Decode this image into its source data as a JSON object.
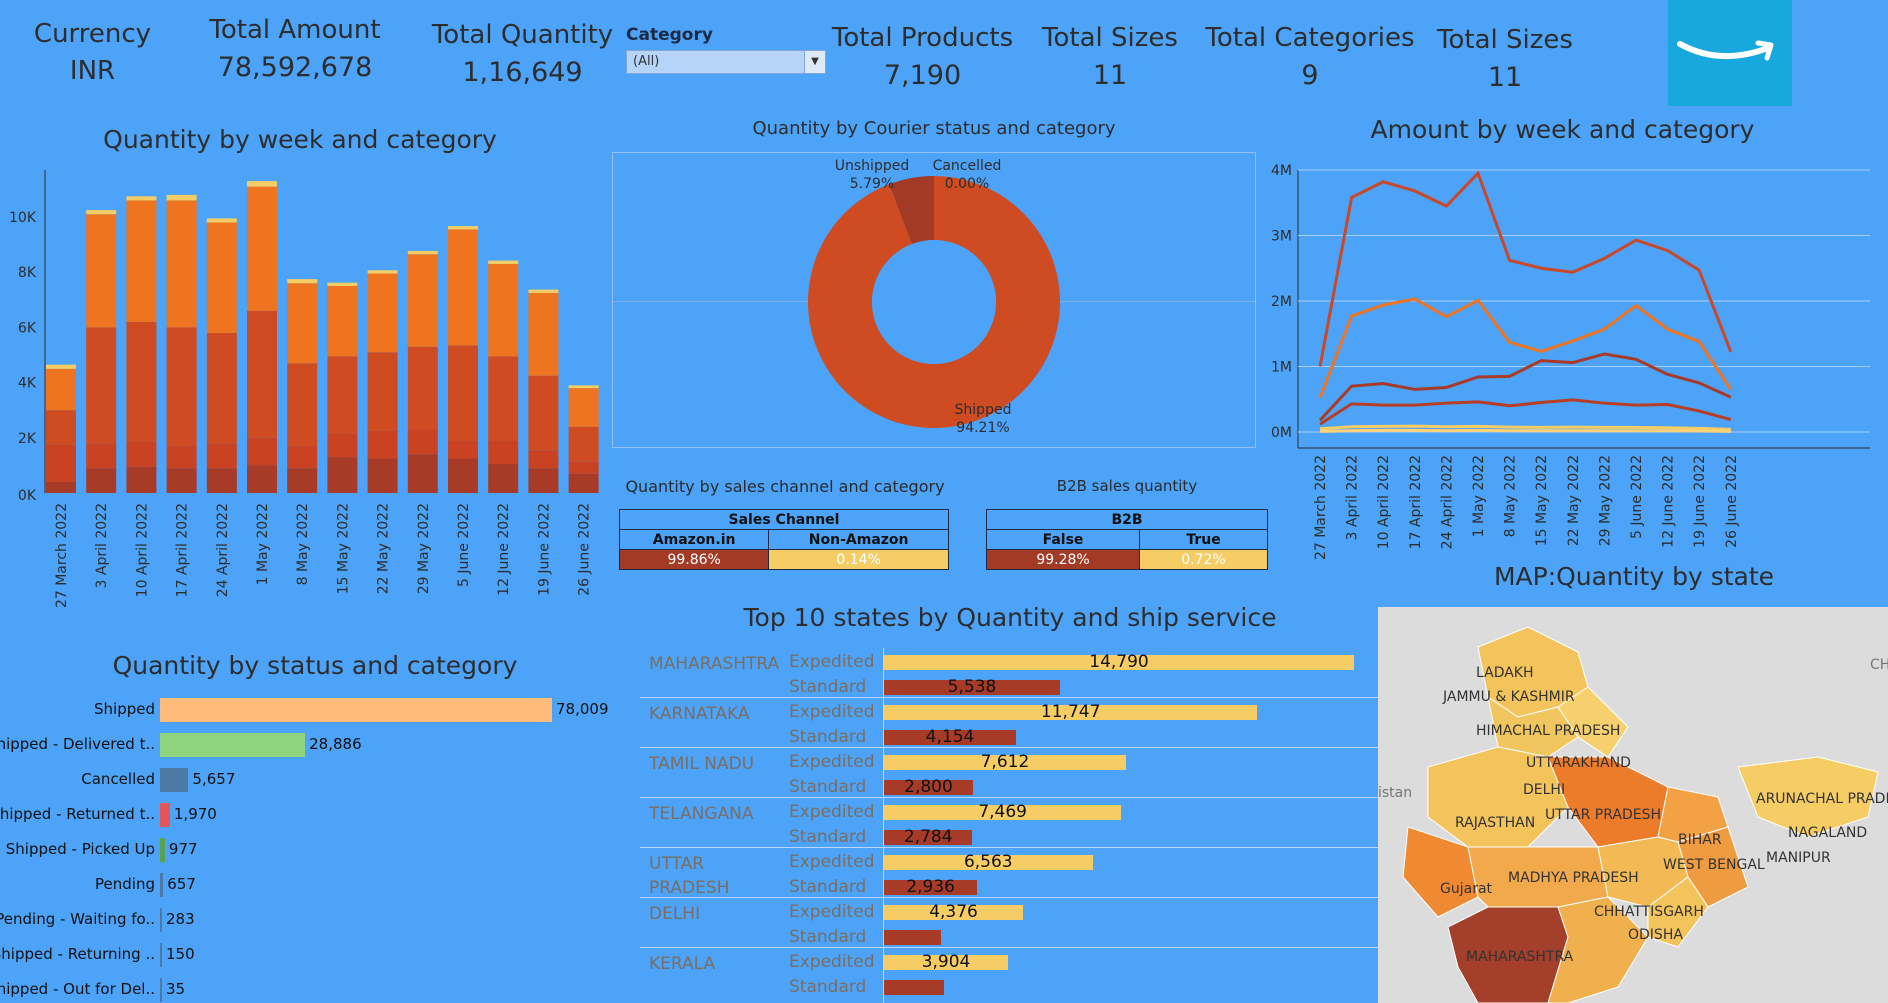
{
  "kpis": {
    "currency": {
      "label": "Currency",
      "value": "INR"
    },
    "total_amount": {
      "label": "Total Amount",
      "value": "78,592,678"
    },
    "total_quantity": {
      "label": "Total Quantity",
      "value": "1,16,649"
    },
    "total_products": {
      "label": "Total Products",
      "value": "7,190"
    },
    "total_sizes_1": {
      "label": "Total Sizes",
      "value": "11"
    },
    "total_categories": {
      "label": "Total Categories",
      "value": "9"
    },
    "total_sizes_2": {
      "label": "Total Sizes",
      "value": "11"
    }
  },
  "category_filter": {
    "label": "Category",
    "value": "(All)"
  },
  "colors": {
    "background": "#4da3f7",
    "orange": "#ef7420",
    "dark_orange": "#cf4b22",
    "dark_red": "#a83b27",
    "yellow": "#f5cd64",
    "peach": "#ffbb7a",
    "green": "#8fd57f",
    "slate": "#4d79a6",
    "red": "#e15759",
    "logo": "#17a8dd"
  },
  "logo": {
    "icon": "amazon-smile-icon"
  },
  "quantity_week": {
    "title": "Quantity by week and category",
    "chart_data": {
      "type": "bar",
      "stacked": true,
      "categories": [
        "27 March 2022",
        "3 April 2022",
        "10 April 2022",
        "17 April 2022",
        "24 April 2022",
        "1 May 2022",
        "8 May 2022",
        "15 May 2022",
        "22 May 2022",
        "29 May 2022",
        "5 June 2022",
        "12 June 2022",
        "19 June 2022",
        "26 June 2022"
      ],
      "yticks": [
        "0K",
        "2K",
        "4K",
        "6K",
        "8K",
        "10K"
      ],
      "ylim": [
        0,
        11800
      ],
      "series": [
        {
          "values": [
            400,
            900,
            950,
            900,
            900,
            1000,
            900,
            1300,
            1250,
            1400,
            1250,
            1050,
            900,
            700
          ]
        },
        {
          "values": [
            1350,
            900,
            900,
            800,
            900,
            1000,
            800,
            850,
            1000,
            900,
            650,
            850,
            650,
            450
          ]
        },
        {
          "values": [
            1250,
            4200,
            4350,
            4300,
            4000,
            4600,
            3000,
            2800,
            2850,
            3000,
            3450,
            3050,
            2700,
            1250
          ]
        },
        {
          "values": [
            1500,
            4100,
            4400,
            4600,
            4000,
            4500,
            2900,
            2550,
            2850,
            3350,
            4200,
            3350,
            3000,
            1400
          ]
        },
        {
          "values": [
            150,
            150,
            150,
            200,
            150,
            200,
            150,
            120,
            120,
            120,
            120,
            120,
            120,
            100
          ]
        }
      ]
    }
  },
  "courier": {
    "title": "Quantity by Courier status and category",
    "chart_data": {
      "type": "pie",
      "slices": [
        {
          "label": "Shipped",
          "percent": "94.21%",
          "value": 94.21
        },
        {
          "label": "Unshipped",
          "percent": "5.79%",
          "value": 5.79
        },
        {
          "label": "Cancelled",
          "percent": "0.00%",
          "value": 0.0
        }
      ]
    }
  },
  "amount_week": {
    "title": "Amount by week and category",
    "chart_data": {
      "type": "line",
      "x": [
        "27 March 2022",
        "3 April 2022",
        "10 April 2022",
        "17 April 2022",
        "24 April 2022",
        "1 May 2022",
        "8 May 2022",
        "15 May 2022",
        "22 May 2022",
        "29 May 2022",
        "5 June 2022",
        "12 June 2022",
        "19 June 2022",
        "26 June 2022"
      ],
      "yticks": [
        "0M",
        "1M",
        "2M",
        "3M",
        "4M"
      ],
      "ylim": [
        -200000,
        4200000
      ],
      "series": [
        {
          "values": [
            1000000,
            3580000,
            3820000,
            3680000,
            3450000,
            3950000,
            2620000,
            2500000,
            2440000,
            2650000,
            2930000,
            2770000,
            2470000,
            1220000
          ]
        },
        {
          "values": [
            520000,
            1770000,
            1940000,
            2030000,
            1760000,
            2010000,
            1370000,
            1230000,
            1390000,
            1570000,
            1930000,
            1570000,
            1380000,
            650000
          ]
        },
        {
          "values": [
            180000,
            700000,
            740000,
            650000,
            680000,
            840000,
            850000,
            1090000,
            1060000,
            1190000,
            1110000,
            880000,
            750000,
            530000
          ]
        },
        {
          "values": [
            120000,
            430000,
            410000,
            410000,
            440000,
            460000,
            400000,
            450000,
            490000,
            440000,
            410000,
            420000,
            320000,
            190000
          ]
        },
        {
          "values": [
            50000,
            80000,
            85000,
            90000,
            80000,
            85000,
            75000,
            70000,
            75000,
            70000,
            70000,
            65000,
            55000,
            40000
          ]
        },
        {
          "values": [
            10000,
            20000,
            25000,
            25000,
            20000,
            25000,
            20000,
            20000,
            20000,
            20000,
            20000,
            20000,
            15000,
            10000
          ]
        }
      ]
    }
  },
  "sales_channel": {
    "title": "Quantity by sales channel and category",
    "header": "Sales Channel",
    "cols": [
      "Amazon.in",
      "Non-Amazon"
    ],
    "values": [
      "99.86%",
      "0.14%"
    ]
  },
  "b2b": {
    "title": "B2B sales quantity",
    "header": "B2B",
    "cols": [
      "False",
      "True"
    ],
    "values": [
      "99.28%",
      "0.72%"
    ]
  },
  "status": {
    "title": "Quantity by status and category",
    "chart_data": {
      "type": "bar",
      "orientation": "horizontal",
      "categories": [
        "Shipped",
        "Shipped - Delivered t..",
        "Cancelled",
        "Shipped - Returned t..",
        "Shipped - Picked Up",
        "Pending",
        "Pending - Waiting fo..",
        "Shipped - Returning ..",
        "Shipped - Out for Del.."
      ],
      "values": [
        78009,
        28886,
        5657,
        1970,
        977,
        657,
        283,
        150,
        35
      ],
      "labels": [
        "78,009",
        "28,886",
        "5,657",
        "1,970",
        "977",
        "657",
        "283",
        "150",
        "35"
      ]
    }
  },
  "top_states": {
    "title": "Top 10 states by Quantity and ship service",
    "chart_data": {
      "type": "bar",
      "orientation": "horizontal",
      "rows": [
        {
          "state": "MAHARASHTRA",
          "services": [
            {
              "name": "Expedited",
              "value": 14790,
              "label": "14,790"
            },
            {
              "name": "Standard",
              "value": 5538,
              "label": "5,538"
            }
          ]
        },
        {
          "state": "KARNATAKA",
          "services": [
            {
              "name": "Expedited",
              "value": 11747,
              "label": "11,747"
            },
            {
              "name": "Standard",
              "value": 4154,
              "label": "4,154"
            }
          ]
        },
        {
          "state": "TAMIL NADU",
          "services": [
            {
              "name": "Expedited",
              "value": 7612,
              "label": "7,612"
            },
            {
              "name": "Standard",
              "value": 2800,
              "label": "2,800"
            }
          ]
        },
        {
          "state": "TELANGANA",
          "services": [
            {
              "name": "Expedited",
              "value": 7469,
              "label": "7,469"
            },
            {
              "name": "Standard",
              "value": 2784,
              "label": "2,784"
            }
          ]
        },
        {
          "state": "UTTAR\nPRADESH",
          "services": [
            {
              "name": "Expedited",
              "value": 6563,
              "label": "6,563"
            },
            {
              "name": "Standard",
              "value": 2936,
              "label": "2,936"
            }
          ]
        },
        {
          "state": "DELHI",
          "services": [
            {
              "name": "Expedited",
              "value": 4376,
              "label": "4,376"
            },
            {
              "name": "Standard",
              "value": 1800,
              "label": ""
            }
          ]
        },
        {
          "state": "KERALA",
          "services": [
            {
              "name": "Expedited",
              "value": 3904,
              "label": "3,904"
            },
            {
              "name": "Standard",
              "value": 1900,
              "label": ""
            }
          ]
        }
      ]
    }
  },
  "map": {
    "title": "MAP:Quantity by state",
    "labels": [
      "LADAKH",
      "JAMMU & KASHMIR",
      "HIMACHAL PRADESH",
      "UTTARAKHAND",
      "DELHI",
      "UTTAR PRADESH",
      "RAJASTHAN",
      "BIHAR",
      "WEST BENGAL",
      "ARUNACHAL PRADE",
      "NAGALAND",
      "MANIPUR",
      "MADHYA PRADESH",
      "Gujarat",
      "CHHATTISGARH",
      "ODISHA",
      "MAHARASHTRA",
      "istan",
      "CH"
    ]
  }
}
